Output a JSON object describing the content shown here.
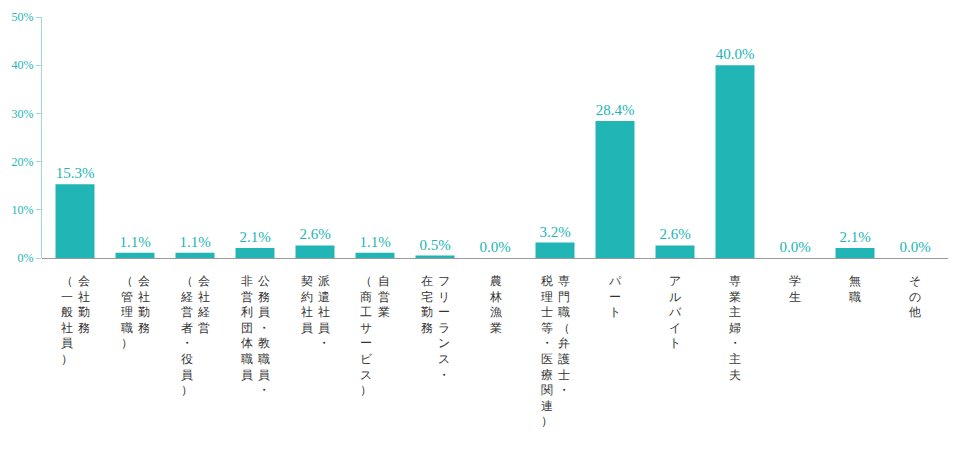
{
  "chart_data": {
    "type": "bar",
    "categories": [
      "会社勤務\n（一般社員）",
      "会社勤務\n（管理職）",
      "会社経営\n（経営者・役員）",
      "公務員・教職員・\n非営利団体職員",
      "派遣社員・\n契約社員",
      "自営業\n（商工サービス）",
      "フリーランス・\n在宅勤務",
      "農林漁業",
      "専門職（弁護士・\n税理士等・医療関連）",
      "パート",
      "アルバイト",
      "専業主婦・主夫",
      "学生",
      "無職",
      "その他"
    ],
    "values": [
      15.3,
      1.1,
      1.1,
      2.1,
      2.6,
      1.1,
      0.5,
      0.0,
      3.2,
      28.4,
      2.6,
      40.0,
      0.0,
      2.1,
      0.0
    ],
    "value_labels": [
      "15.3%",
      "1.1%",
      "1.1%",
      "2.1%",
      "2.6%",
      "1.1%",
      "0.5%",
      "0.0%",
      "3.2%",
      "28.4%",
      "2.6%",
      "40.0%",
      "0.0%",
      "2.1%",
      "0.0%"
    ],
    "data_labels": true,
    "color": "#22b5b5",
    "ylim": [
      0,
      50
    ],
    "yticks": [
      {
        "value": 0,
        "label": "0%"
      },
      {
        "value": 10,
        "label": "10%"
      },
      {
        "value": 20,
        "label": "20%"
      },
      {
        "value": 30,
        "label": "30%"
      },
      {
        "value": 40,
        "label": "40%"
      },
      {
        "value": 50,
        "label": "50%"
      }
    ],
    "grid": false
  }
}
